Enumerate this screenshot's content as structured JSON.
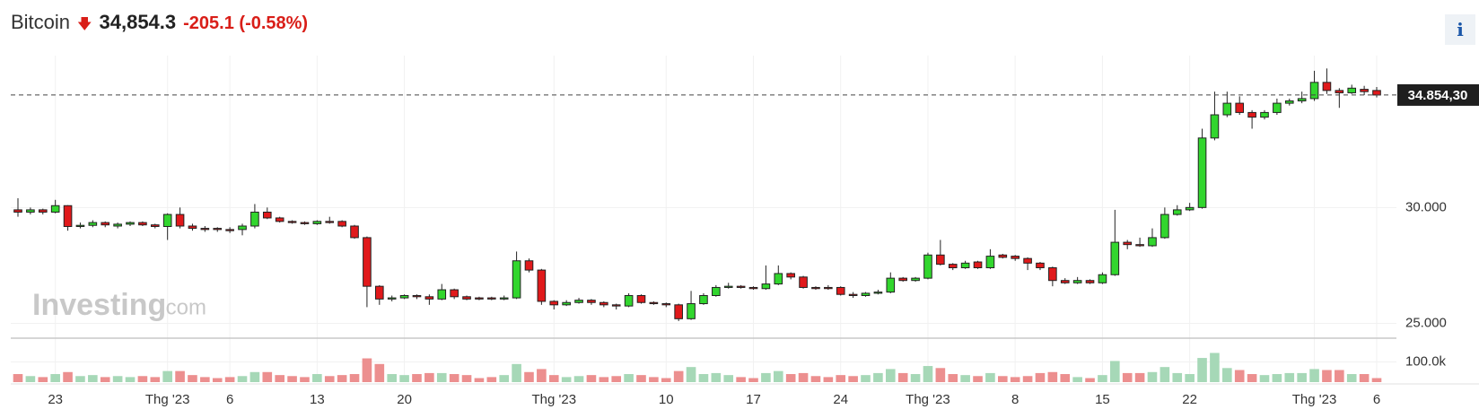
{
  "chart_data": {
    "type": "candlestick",
    "title": "Bitcoin",
    "price": "34,854.3",
    "change": "-205.1 (-0.58%)",
    "info": "i",
    "watermark": [
      "Investing",
      ".com"
    ],
    "categories": [
      null,
      null,
      null,
      "23",
      null,
      null,
      null,
      null,
      null,
      null,
      null,
      null,
      "Thg '23",
      null,
      null,
      null,
      null,
      "6",
      null,
      null,
      null,
      null,
      null,
      null,
      "13",
      null,
      null,
      null,
      null,
      null,
      null,
      "20",
      null,
      null,
      null,
      null,
      null,
      null,
      null,
      null,
      null,
      null,
      null,
      "Thg '23",
      null,
      null,
      null,
      null,
      null,
      null,
      null,
      null,
      "10",
      null,
      null,
      null,
      null,
      null,
      null,
      "17",
      null,
      null,
      null,
      null,
      null,
      null,
      "24",
      null,
      null,
      null,
      null,
      null,
      null,
      "Thg '23",
      null,
      null,
      null,
      null,
      null,
      null,
      "8",
      null,
      null,
      null,
      null,
      null,
      null,
      "15",
      null,
      null,
      null,
      null,
      null,
      null,
      "22",
      null,
      null,
      null,
      null,
      null,
      null,
      null,
      null,
      null,
      "Thg '23",
      null,
      null,
      null,
      null,
      "6"
    ],
    "open": [
      29900,
      29800,
      29900,
      29800,
      30080,
      29180,
      29230,
      29350,
      29200,
      29280,
      29350,
      29250,
      29180,
      29700,
      29200,
      29100,
      29100,
      29050,
      29050,
      29200,
      29800,
      29550,
      29400,
      29350,
      29300,
      29400,
      29400,
      29200,
      28700,
      26600,
      26050,
      26100,
      26200,
      26150,
      26050,
      26450,
      26150,
      26100,
      26100,
      26050,
      26100,
      27700,
      27300,
      25950,
      25800,
      25900,
      26000,
      25900,
      25800,
      25750,
      26200,
      25900,
      25850,
      25800,
      25200,
      25850,
      26200,
      26550,
      26600,
      26550,
      26500,
      26700,
      27150,
      27000,
      26550,
      26550,
      26550,
      26250,
      26200,
      26300,
      26350,
      26950,
      26850,
      26950,
      27950,
      27550,
      27400,
      27650,
      27400,
      27950,
      27900,
      27800,
      27600,
      27400,
      26850,
      26750,
      26850,
      26750,
      27100,
      28500,
      28400,
      28350,
      28700,
      29700,
      29900,
      30000,
      33000,
      34000,
      34500,
      34100,
      33900,
      34100,
      34500,
      34600,
      34700,
      35400,
      35050,
      34950,
      35100,
      35050
    ],
    "high": [
      30400,
      30000,
      29950,
      30330,
      30100,
      29350,
      29450,
      29400,
      29350,
      29400,
      29400,
      29300,
      29750,
      30000,
      29300,
      29200,
      29150,
      29150,
      29300,
      30150,
      30000,
      29600,
      29450,
      29400,
      29450,
      29600,
      29450,
      29250,
      28750,
      26650,
      26200,
      26250,
      26250,
      26250,
      26700,
      26500,
      26200,
      26150,
      26150,
      26200,
      28100,
      27800,
      27350,
      26000,
      26000,
      26100,
      26050,
      25950,
      25850,
      26300,
      26250,
      25950,
      25900,
      25850,
      26400,
      26300,
      26650,
      26750,
      26650,
      26600,
      27500,
      27500,
      27200,
      27050,
      26600,
      26650,
      26600,
      26350,
      26350,
      26450,
      27200,
      27000,
      27000,
      28050,
      28600,
      27600,
      27700,
      27700,
      28200,
      28000,
      27950,
      27850,
      27650,
      27450,
      26950,
      27000,
      26900,
      27200,
      29900,
      28600,
      28700,
      29100,
      30000,
      30100,
      30200,
      33400,
      35000,
      35000,
      34800,
      34200,
      34200,
      34700,
      34700,
      35000,
      35900,
      36000,
      35150,
      35300,
      35250,
      35200
    ],
    "low": [
      29600,
      29700,
      29700,
      29750,
      29000,
      29100,
      29150,
      29150,
      29100,
      29200,
      29200,
      29100,
      28600,
      29100,
      29000,
      28950,
      28950,
      28900,
      28800,
      29100,
      29500,
      29350,
      29300,
      29250,
      29250,
      29300,
      29150,
      28650,
      25700,
      25800,
      25950,
      26050,
      26050,
      25800,
      26000,
      26050,
      26000,
      26000,
      26000,
      26000,
      26050,
      27200,
      25800,
      25600,
      25750,
      25850,
      25800,
      25700,
      25600,
      25700,
      25850,
      25800,
      25700,
      25100,
      25150,
      25800,
      26150,
      26500,
      26500,
      26450,
      26450,
      26650,
      26900,
      26500,
      26450,
      26450,
      26200,
      26100,
      26150,
      26250,
      26300,
      26800,
      26800,
      26900,
      27500,
      27300,
      27350,
      27350,
      27350,
      27800,
      27700,
      27300,
      27300,
      26600,
      26700,
      26700,
      26700,
      26700,
      27050,
      28200,
      28300,
      28300,
      28650,
      29650,
      29850,
      29950,
      32900,
      33900,
      34000,
      33400,
      33800,
      34000,
      34400,
      34500,
      34600,
      34900,
      34300,
      34900,
      34850,
      34750
    ],
    "close": [
      29800,
      29900,
      29800,
      30080,
      29180,
      29230,
      29350,
      29250,
      29280,
      29350,
      29250,
      29180,
      29700,
      29200,
      29100,
      29050,
      29050,
      29000,
      29200,
      29800,
      29550,
      29400,
      29350,
      29300,
      29400,
      29350,
      29200,
      28700,
      26600,
      26050,
      26100,
      26200,
      26150,
      26050,
      26450,
      26150,
      26050,
      26050,
      26050,
      26100,
      27700,
      27300,
      25950,
      25800,
      25900,
      26000,
      25900,
      25800,
      25750,
      26200,
      25900,
      25850,
      25800,
      25200,
      25850,
      26200,
      26550,
      26600,
      26550,
      26500,
      26700,
      27150,
      27000,
      26550,
      26500,
      26500,
      26250,
      26200,
      26300,
      26350,
      26950,
      26850,
      26950,
      27950,
      27550,
      27400,
      27600,
      27400,
      27900,
      27850,
      27800,
      27600,
      27400,
      26850,
      26750,
      26850,
      26750,
      27100,
      28500,
      28400,
      28350,
      28700,
      29700,
      29900,
      30000,
      33000,
      34000,
      34500,
      34100,
      33900,
      34100,
      34500,
      34600,
      34700,
      35400,
      35050,
      34950,
      35150,
      35000,
      34854.3
    ],
    "volume": [
      40000,
      30000,
      25000,
      40000,
      50000,
      30000,
      35000,
      25000,
      30000,
      25000,
      30000,
      25000,
      55000,
      55000,
      35000,
      25000,
      20000,
      25000,
      30000,
      50000,
      50000,
      35000,
      30000,
      25000,
      40000,
      30000,
      35000,
      40000,
      118000,
      90000,
      40000,
      35000,
      40000,
      45000,
      45000,
      40000,
      35000,
      20000,
      25000,
      35000,
      90000,
      50000,
      65000,
      35000,
      25000,
      30000,
      35000,
      25000,
      30000,
      40000,
      35000,
      25000,
      20000,
      55000,
      75000,
      40000,
      45000,
      35000,
      25000,
      20000,
      45000,
      55000,
      40000,
      45000,
      30000,
      25000,
      35000,
      30000,
      35000,
      45000,
      65000,
      45000,
      40000,
      80000,
      70000,
      40000,
      35000,
      30000,
      45000,
      30000,
      25000,
      30000,
      45000,
      50000,
      40000,
      25000,
      20000,
      35000,
      105000,
      45000,
      45000,
      50000,
      75000,
      45000,
      40000,
      120000,
      145000,
      70000,
      60000,
      40000,
      35000,
      40000,
      45000,
      45000,
      65000,
      60000,
      60000,
      40000,
      40000,
      20000
    ],
    "up_color": "#32d62e",
    "down_color": "#e0191b",
    "up_volume_color": "#a6d8b7",
    "down_volume_color": "#ec8f8f",
    "ylim": [
      24400,
      36400
    ],
    "yticks": [
      {
        "value": 25000,
        "label": "25.000"
      },
      {
        "value": 30000,
        "label": "30.000"
      }
    ],
    "last_price": {
      "value": 34854.3,
      "label": "34.854,30"
    },
    "volume_ylim": [
      0,
      205000
    ],
    "volume_ticks": [
      {
        "value": 100000,
        "label": "100.0k"
      }
    ],
    "grid": true
  }
}
